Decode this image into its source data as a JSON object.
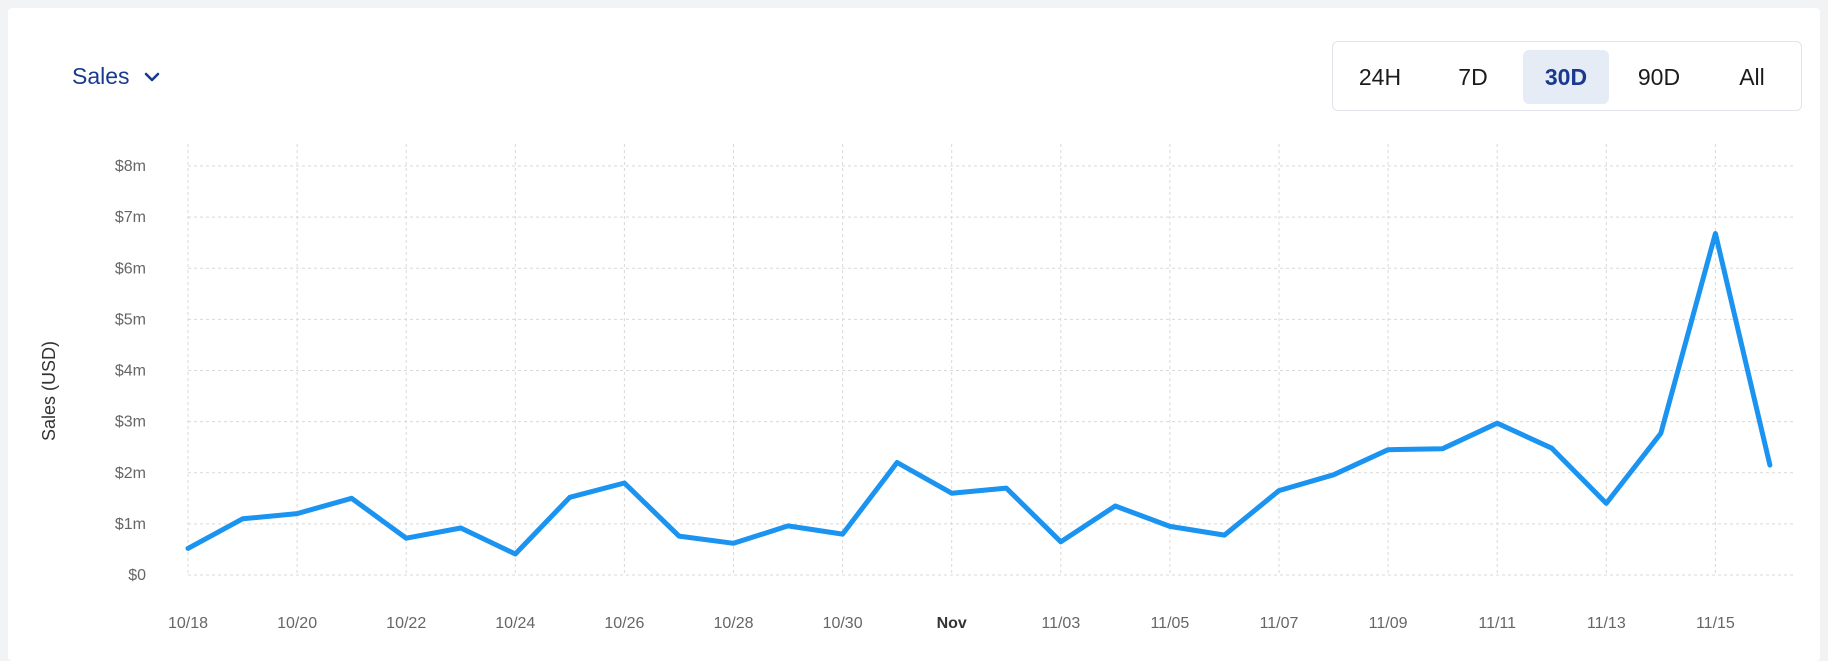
{
  "metric_selector": {
    "label": "Sales",
    "icon": "chevron-down-icon"
  },
  "time_ranges": [
    {
      "label": "24H",
      "active": false
    },
    {
      "label": "7D",
      "active": false
    },
    {
      "label": "30D",
      "active": true
    },
    {
      "label": "90D",
      "active": false
    },
    {
      "label": "All",
      "active": false
    }
  ],
  "colors": {
    "accent": "#1a3a8f",
    "line": "#1a94f0",
    "grid": "#d9d9d9",
    "active_bg": "#e6ecf6"
  },
  "chart_data": {
    "type": "line",
    "ylabel": "Sales (USD)",
    "xlabel": "",
    "ylim": [
      0,
      8
    ],
    "y_ticks": [
      0,
      1,
      2,
      3,
      4,
      5,
      6,
      7,
      8
    ],
    "y_tick_labels": [
      "$0",
      "$1m",
      "$2m",
      "$3m",
      "$4m",
      "$5m",
      "$6m",
      "$7m",
      "$8m"
    ],
    "x_tick_labels": [
      "10/18",
      "10/20",
      "10/22",
      "10/24",
      "10/26",
      "10/28",
      "10/30",
      "Nov",
      "11/03",
      "11/05",
      "11/07",
      "11/09",
      "11/11",
      "11/13",
      "11/15"
    ],
    "x_tick_bold": [
      "Nov"
    ],
    "grid": true,
    "x": [
      "10/18",
      "10/19",
      "10/20",
      "10/21",
      "10/22",
      "10/23",
      "10/24",
      "10/25",
      "10/26",
      "10/27",
      "10/28",
      "10/29",
      "10/30",
      "10/31",
      "11/01",
      "11/02",
      "11/03",
      "11/04",
      "11/05",
      "11/06",
      "11/07",
      "11/08",
      "11/09",
      "11/10",
      "11/11",
      "11/12",
      "11/13",
      "11/14",
      "11/15",
      "11/16"
    ],
    "series": [
      {
        "values": [
          0.52,
          1.1,
          1.2,
          1.5,
          0.72,
          0.92,
          0.41,
          1.52,
          1.8,
          0.76,
          0.62,
          0.96,
          0.8,
          2.2,
          1.6,
          1.7,
          0.65,
          1.35,
          0.95,
          0.78,
          1.65,
          1.96,
          2.45,
          2.47,
          2.97,
          2.48,
          1.4,
          2.77,
          6.68,
          2.15
        ],
        "color": "#1a94f0"
      }
    ]
  }
}
